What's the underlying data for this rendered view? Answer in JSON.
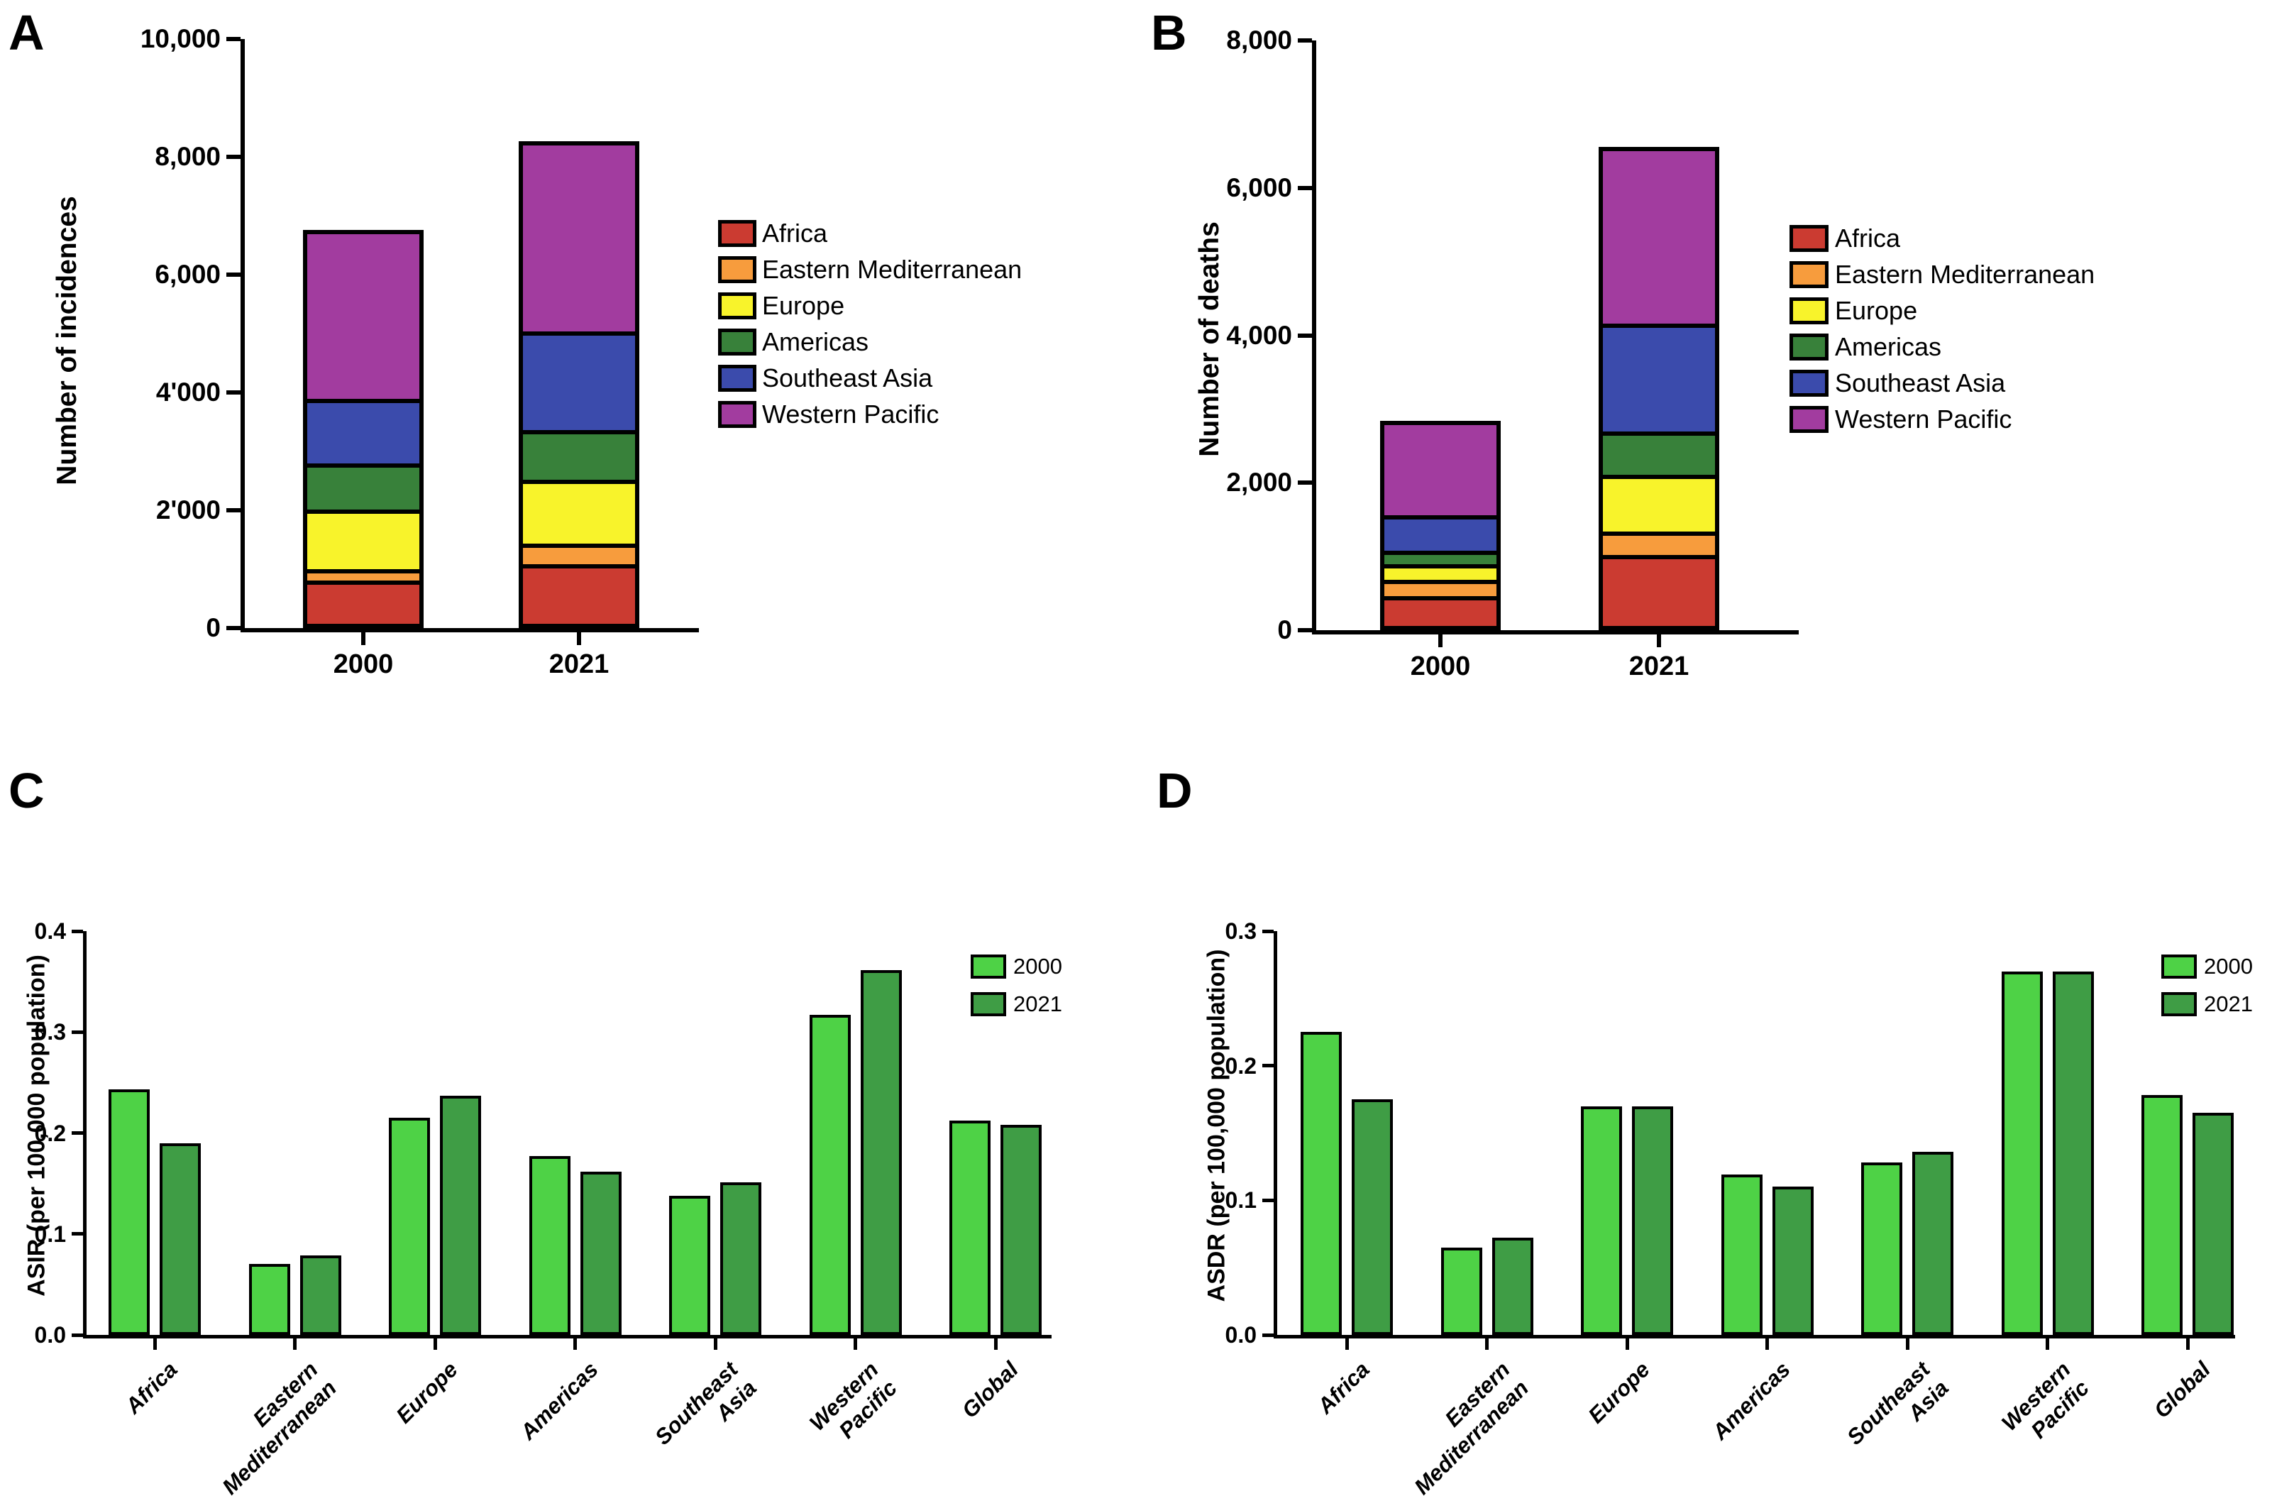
{
  "figure": {
    "background": "#FFFFFF"
  },
  "panels": {
    "a": {
      "letter": "A"
    },
    "b": {
      "letter": "B"
    },
    "c": {
      "letter": "C"
    },
    "d": {
      "letter": "D"
    }
  },
  "legend_regions": {
    "items": [
      {
        "label": "Africa",
        "color": "#CB3B31"
      },
      {
        "label": "Eastern Mediterranean",
        "color": "#F79C3D"
      },
      {
        "label": "Europe",
        "color": "#F8F32B"
      },
      {
        "label": "Americas",
        "color": "#38813A"
      },
      {
        "label": "Southeast Asia",
        "color": "#3B4BAC"
      },
      {
        "label": "Western Pacific",
        "color": "#A23C9F"
      }
    ]
  },
  "legend_years": {
    "items": [
      {
        "label": "2000",
        "color": "#4ED246"
      },
      {
        "label": "2021",
        "color": "#3F9D45"
      }
    ]
  },
  "chart_data": [
    {
      "panel": "A",
      "type": "bar",
      "subtype": "stacked",
      "title": "",
      "xlabel": "",
      "ylabel": "Number of incidences",
      "categories": [
        "2000",
        "2021"
      ],
      "series": [
        {
          "name": "Africa",
          "values": [
            720,
            1000
          ]
        },
        {
          "name": "Eastern Mediterranean",
          "values": [
            130,
            300
          ]
        },
        {
          "name": "Europe",
          "values": [
            1010,
            1070
          ]
        },
        {
          "name": "Americas",
          "values": [
            770,
            830
          ]
        },
        {
          "name": "Southeast Asia",
          "values": [
            1110,
            1700
          ]
        },
        {
          "name": "Western Pacific",
          "values": [
            3020,
            3370
          ]
        }
      ],
      "totals": [
        6760,
        8270
      ],
      "ylim": [
        0,
        10000
      ],
      "ytick_step": 2000,
      "ytick_labels": [
        "0",
        "2'000",
        "4'000",
        "6,000",
        "8,000",
        "10,000"
      ],
      "legend_position": "right",
      "grid": false
    },
    {
      "panel": "B",
      "type": "bar",
      "subtype": "stacked",
      "title": "",
      "xlabel": "",
      "ylabel": "Number of deaths",
      "categories": [
        "2000",
        "2021"
      ],
      "series": [
        {
          "name": "Africa",
          "values": [
            400,
            960
          ]
        },
        {
          "name": "Eastern Mediterranean",
          "values": [
            190,
            280
          ]
        },
        {
          "name": "Europe",
          "values": [
            180,
            760
          ]
        },
        {
          "name": "Americas",
          "values": [
            150,
            560
          ]
        },
        {
          "name": "Southeast Asia",
          "values": [
            490,
            1500
          ]
        },
        {
          "name": "Western Pacific",
          "values": [
            1430,
            2500
          ]
        }
      ],
      "totals": [
        2840,
        6560
      ],
      "ylim": [
        0,
        8000
      ],
      "ytick_step": 2000,
      "ytick_labels": [
        "0",
        "2,000",
        "4,000",
        "6,000",
        "8,000"
      ],
      "legend_position": "right",
      "grid": false
    },
    {
      "panel": "C",
      "type": "bar",
      "subtype": "grouped",
      "title": "",
      "xlabel": "",
      "ylabel": "ASIR (per 100,000 population)",
      "categories": [
        "Africa",
        "Eastern\nMediterranean",
        "Europe",
        "Americas",
        "Southeast\nAsia",
        "Western\nPacific",
        "Global"
      ],
      "series": [
        {
          "name": "2000",
          "values": [
            0.243,
            0.07,
            0.215,
            0.177,
            0.138,
            0.317,
            0.212
          ]
        },
        {
          "name": "2021",
          "values": [
            0.19,
            0.079,
            0.237,
            0.162,
            0.151,
            0.361,
            0.208
          ]
        }
      ],
      "ylim": [
        0,
        0.4
      ],
      "ytick_step": 0.1,
      "ytick_labels": [
        "0.0",
        "0.1",
        "0.2",
        "0.3",
        "0.4"
      ],
      "legend_position": "top-right",
      "grid": false
    },
    {
      "panel": "D",
      "type": "bar",
      "subtype": "grouped",
      "title": "",
      "xlabel": "",
      "ylabel": "ASDR (per 100,000 population)",
      "categories": [
        "Africa",
        "Eastern\nMediterranean",
        "Europe",
        "Americas",
        "Southeast\nAsia",
        "Western\nPacific",
        "Global"
      ],
      "series": [
        {
          "name": "2000",
          "values": [
            0.225,
            0.065,
            0.17,
            0.119,
            0.128,
            0.27,
            0.178
          ]
        },
        {
          "name": "2021",
          "values": [
            0.175,
            0.072,
            0.17,
            0.11,
            0.136,
            0.27,
            0.165
          ]
        }
      ],
      "ylim": [
        0,
        0.3
      ],
      "ytick_step": 0.1,
      "ytick_labels": [
        "0.0",
        "0.1",
        "0.2",
        "0.3"
      ],
      "legend_position": "top-right",
      "grid": false
    }
  ]
}
